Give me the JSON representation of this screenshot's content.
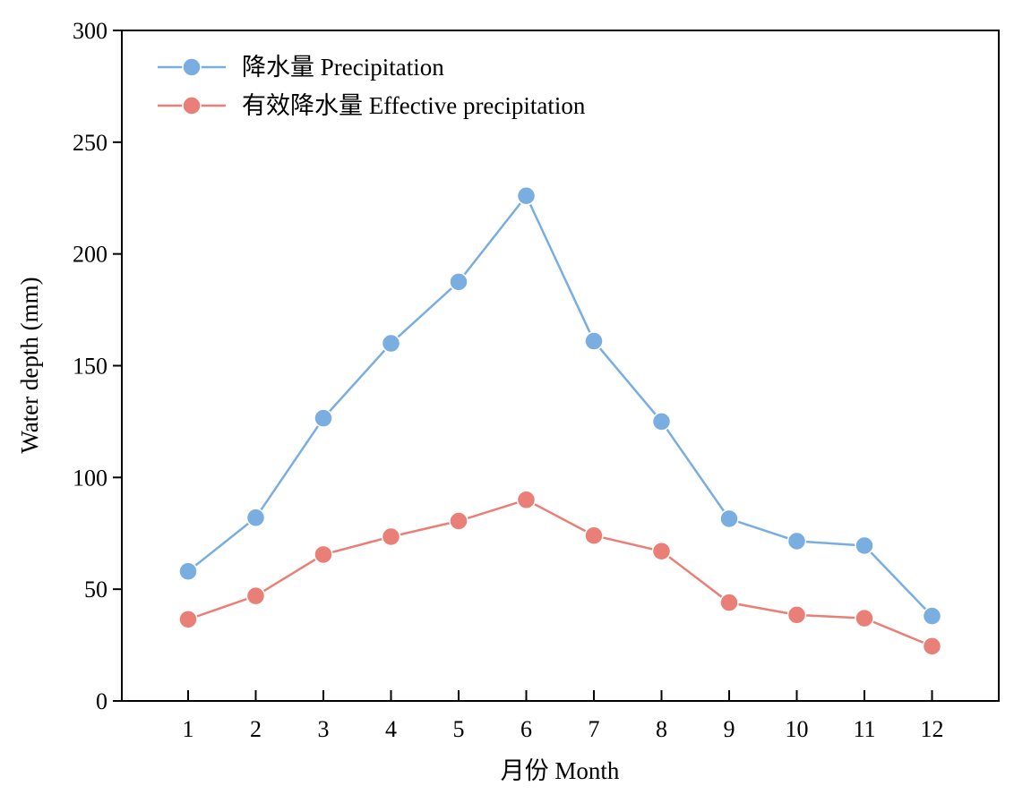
{
  "chart_data": {
    "type": "line",
    "title": "",
    "xlabel": "月份 Month",
    "ylabel": "Water depth (mm)",
    "x": [
      1,
      2,
      3,
      4,
      5,
      6,
      7,
      8,
      9,
      10,
      11,
      12
    ],
    "x_tick_labels": [
      "1",
      "2",
      "3",
      "4",
      "5",
      "6",
      "7",
      "8",
      "9",
      "10",
      "11",
      "12"
    ],
    "ylim": [
      0,
      300
    ],
    "y_ticks": [
      0,
      50,
      100,
      150,
      200,
      250,
      300
    ],
    "y_tick_labels": [
      "0",
      "50",
      "100",
      "150",
      "200",
      "250",
      "300"
    ],
    "grid": false,
    "legend_position": "top-left",
    "series": [
      {
        "name": "降水量 Precipitation",
        "color": "#7aaee0",
        "values": [
          58,
          82,
          126.5,
          160,
          187.5,
          226,
          161,
          125,
          81.5,
          71.5,
          69.5,
          38
        ]
      },
      {
        "name": "有效降水量 Effective precipitation",
        "color": "#ea7f77",
        "values": [
          36.5,
          47,
          65.5,
          73.5,
          80.5,
          90,
          74,
          67,
          44,
          38.5,
          37,
          24.5
        ]
      }
    ]
  }
}
